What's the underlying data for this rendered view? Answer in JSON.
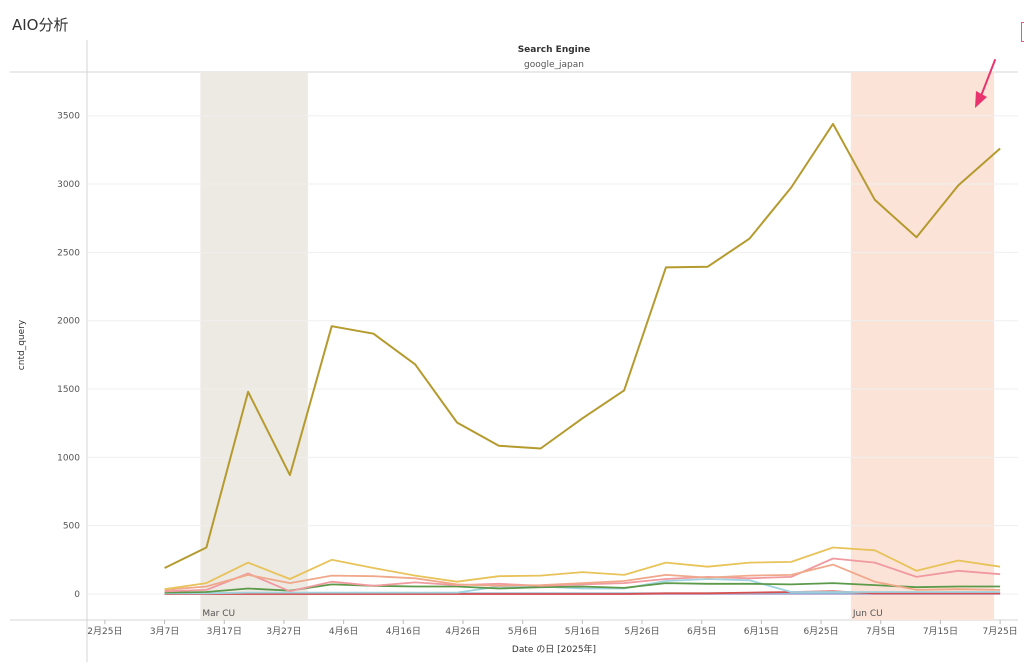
{
  "page": {
    "title": "AIO分析"
  },
  "chart_data": {
    "type": "line",
    "header_label": "Search Engine",
    "header_value": "google_japan",
    "xlabel": "Date の日 [2025年]",
    "ylabel": "cntd_query",
    "ylim": [
      0,
      3600
    ],
    "yticks": [
      0,
      500,
      1000,
      1500,
      2000,
      2500,
      3000,
      3500
    ],
    "x_ticks": [
      {
        "date": "2025-02-25",
        "label": "2月25日"
      },
      {
        "date": "2025-03-07",
        "label": "3月7日"
      },
      {
        "date": "2025-03-17",
        "label": "3月17日"
      },
      {
        "date": "2025-03-27",
        "label": "3月27日"
      },
      {
        "date": "2025-04-06",
        "label": "4月6日"
      },
      {
        "date": "2025-04-16",
        "label": "4月16日"
      },
      {
        "date": "2025-04-26",
        "label": "4月26日"
      },
      {
        "date": "2025-05-06",
        "label": "5月6日"
      },
      {
        "date": "2025-05-16",
        "label": "5月16日"
      },
      {
        "date": "2025-05-26",
        "label": "5月26日"
      },
      {
        "date": "2025-06-05",
        "label": "6月5日"
      },
      {
        "date": "2025-06-15",
        "label": "6月15日"
      },
      {
        "date": "2025-06-25",
        "label": "6月25日"
      },
      {
        "date": "2025-07-05",
        "label": "7月5日"
      },
      {
        "date": "2025-07-15",
        "label": "7月15日"
      },
      {
        "date": "2025-07-25",
        "label": "7月25日"
      }
    ],
    "xlim": [
      "2025-02-22",
      "2025-07-28"
    ],
    "grid": true,
    "bands": [
      {
        "label": "Mar CU",
        "start": "2025-03-13",
        "end": "2025-03-31",
        "color": "#ede9e3"
      },
      {
        "label": "Jun CU",
        "start": "2025-06-30",
        "end": "2025-07-24",
        "color": "#fbe3d8"
      }
    ],
    "x": [
      "2025-03-07",
      "2025-03-14",
      "2025-03-21",
      "2025-03-28",
      "2025-04-04",
      "2025-04-11",
      "2025-04-18",
      "2025-04-25",
      "2025-05-02",
      "2025-05-09",
      "2025-05-16",
      "2025-05-23",
      "2025-05-30",
      "2025-06-06",
      "2025-06-13",
      "2025-06-20",
      "2025-06-27",
      "2025-07-04",
      "2025-07-11",
      "2025-07-18",
      "2025-07-25"
    ],
    "series": [
      {
        "color": "#b59a2e",
        "values": [
          190,
          340,
          1480,
          870,
          1960,
          1905,
          1680,
          1255,
          1085,
          1065,
          1285,
          1490,
          2390,
          2395,
          2600,
          2975,
          3440,
          2885,
          2610,
          2990,
          3260
        ]
      },
      {
        "color": "#e8c35a",
        "values": [
          35,
          80,
          230,
          110,
          250,
          190,
          135,
          90,
          130,
          135,
          160,
          140,
          230,
          200,
          230,
          235,
          340,
          320,
          170,
          245,
          200
        ]
      },
      {
        "color": "#f0a88a",
        "values": [
          30,
          55,
          140,
          80,
          135,
          130,
          115,
          70,
          60,
          65,
          80,
          95,
          140,
          120,
          135,
          140,
          215,
          90,
          30,
          35,
          30
        ]
      },
      {
        "color": "#f09aa0",
        "values": [
          20,
          30,
          150,
          20,
          90,
          60,
          85,
          65,
          75,
          60,
          70,
          80,
          110,
          125,
          115,
          125,
          260,
          230,
          125,
          170,
          145
        ]
      },
      {
        "color": "#5c9a4a",
        "values": [
          10,
          15,
          40,
          25,
          70,
          60,
          55,
          55,
          40,
          50,
          55,
          45,
          80,
          75,
          75,
          70,
          80,
          65,
          50,
          55,
          55
        ]
      },
      {
        "color": "#9fd3e0",
        "values": [
          5,
          5,
          10,
          10,
          10,
          10,
          10,
          10,
          55,
          55,
          40,
          40,
          95,
          110,
          100,
          15,
          15,
          15,
          15,
          15,
          15
        ]
      },
      {
        "color": "#d65050",
        "values": [
          0,
          0,
          0,
          0,
          0,
          0,
          0,
          0,
          0,
          0,
          0,
          0,
          5,
          5,
          10,
          15,
          20,
          5,
          5,
          5,
          5
        ]
      },
      {
        "color": "#8fb8d8",
        "values": [
          5,
          5,
          5,
          5,
          5,
          5,
          5,
          5,
          5,
          5,
          5,
          5,
          5,
          5,
          5,
          5,
          5,
          5,
          5,
          5,
          5
        ]
      },
      {
        "color": "#c6a0c8",
        "values": [
          0,
          0,
          0,
          0,
          0,
          0,
          0,
          0,
          0,
          0,
          0,
          0,
          0,
          0,
          0,
          0,
          0,
          0,
          0,
          0,
          0
        ]
      }
    ],
    "annotation_arrow_color": "#e8336e"
  }
}
